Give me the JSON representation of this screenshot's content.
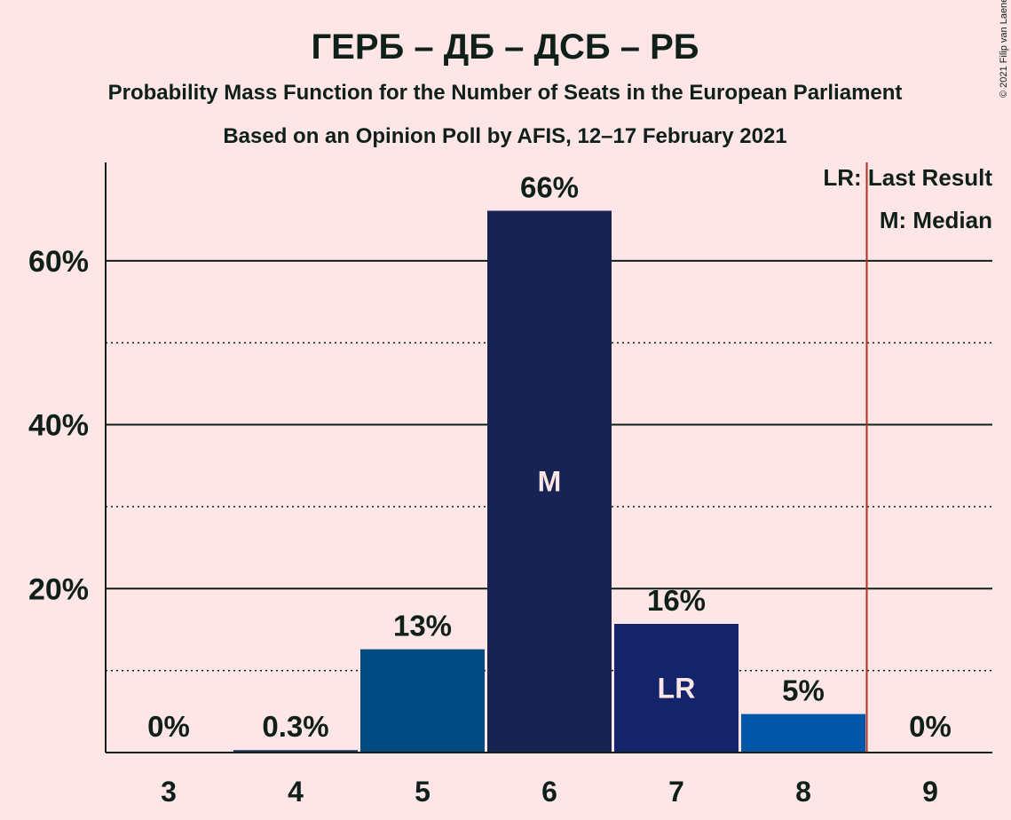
{
  "copyright": "© 2021 Filip van Laenen",
  "chart_data": {
    "type": "bar",
    "title": "ГЕРБ – ДБ – ДСБ – РБ",
    "subtitle": "Probability Mass Function for the Number of Seats in the European Parliament",
    "subtitle2": "Based on an Opinion Poll by AFIS, 12–17 February 2021",
    "categories": [
      "3",
      "4",
      "5",
      "6",
      "7",
      "8",
      "9"
    ],
    "values": [
      0,
      0.3,
      12.6,
      66.1,
      15.7,
      4.7,
      0
    ],
    "value_labels": [
      "0%",
      "0.3%",
      "13%",
      "66%",
      "16%",
      "5%",
      "0%"
    ],
    "bar_colors": [
      "#20305F",
      "#20305F",
      "#004A7F",
      "#172353",
      "#14246A",
      "#0057A8",
      "#20305F"
    ],
    "ylim": [
      0,
      72
    ],
    "yticks": [
      20,
      40,
      60
    ],
    "ytick_labels": [
      "20%",
      "40%",
      "60%"
    ],
    "minor_grid": [
      10,
      30,
      50
    ],
    "median_category": "6",
    "median_marker": "M",
    "last_result_category": "7",
    "last_result_marker": "LR",
    "last_result_line_after": "8",
    "legend": {
      "position": "top-right",
      "lr": "LR: Last Result",
      "m": "M: Median"
    },
    "colors": {
      "background": "#FFE6E6",
      "text": "#0F1F1A",
      "last_result_line": "#B03020"
    }
  }
}
